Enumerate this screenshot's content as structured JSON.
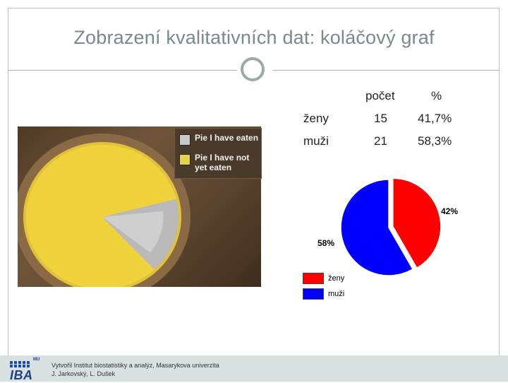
{
  "slide": {
    "title": "Zobrazení kvalitativních dat: koláčový graf"
  },
  "table": {
    "headers": [
      "",
      "počet",
      "%"
    ],
    "rows": [
      {
        "label": "ženy",
        "count": "15",
        "percent": "41,7%"
      },
      {
        "label": "muži",
        "count": "21",
        "percent": "58,3%"
      }
    ]
  },
  "photo": {
    "legend": [
      {
        "label": "Pie I have eaten",
        "color": "#c9c9c9"
      },
      {
        "label": "Pie I have not yet eaten",
        "color": "#e8d44a"
      }
    ],
    "eaten_fraction": 0.17
  },
  "chart_data": {
    "type": "pie",
    "categories": [
      "ženy",
      "muži"
    ],
    "values": [
      15,
      21
    ],
    "labels": [
      "42%",
      "58%"
    ],
    "colors": [
      "#ff0000",
      "#0000ff"
    ],
    "exploded": "ženy",
    "legend_position": "bottom-left"
  },
  "footer": {
    "logo_text": "IBA",
    "logo_small": "MU",
    "credit_line1": "Vytvořil Institut biostatistiky a analýz, Masarykova univerzita",
    "credit_line2": "J. Jarkovský, L. Dušek"
  }
}
